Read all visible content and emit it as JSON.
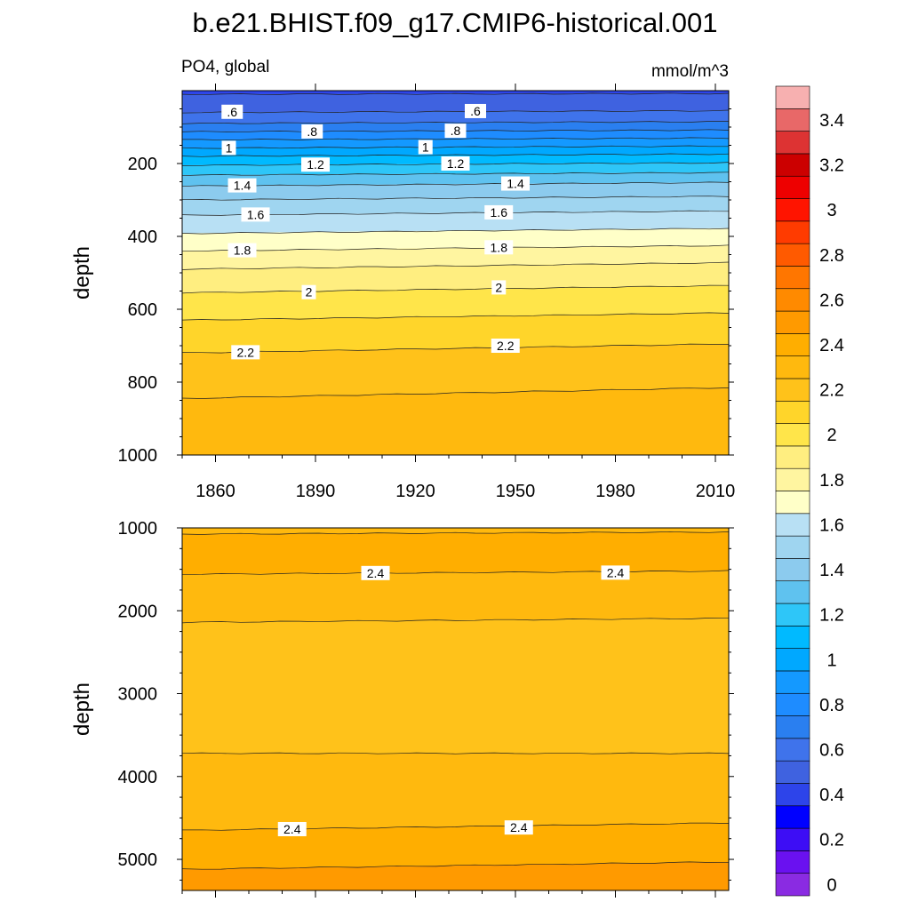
{
  "title": "b.e21.BHIST.f09_g17.CMIP6-historical.001",
  "panel_left_label": "PO4, global",
  "units_label": "mmol/m^3",
  "colorbar": {
    "levels": [
      0,
      0.1,
      0.2,
      0.3,
      0.4,
      0.5,
      0.6,
      0.7,
      0.8,
      0.9,
      1.0,
      1.1,
      1.2,
      1.3,
      1.4,
      1.5,
      1.6,
      1.7,
      1.8,
      1.9,
      2.0,
      2.1,
      2.2,
      2.3,
      2.4,
      2.5,
      2.6,
      2.7,
      2.8,
      2.9,
      3.0,
      3.1,
      3.2,
      3.3,
      3.4,
      3.5
    ],
    "tick_labels": [
      "0",
      "0.2",
      "0.4",
      "0.6",
      "0.8",
      "1",
      "1.2",
      "1.4",
      "1.6",
      "1.8",
      "2",
      "2.2",
      "2.4",
      "2.6",
      "2.8",
      "3",
      "3.2",
      "3.4"
    ],
    "colors": [
      "#8a2be2",
      "#6a11f0",
      "#3d0df5",
      "#0000ff",
      "#2d44ea",
      "#3f62e0",
      "#3f73eb",
      "#2a7ff0",
      "#1e8cff",
      "#1499ff",
      "#00a8ff",
      "#00baff",
      "#2ec6f8",
      "#5fc2ef",
      "#8ccbee",
      "#9fd5f0",
      "#b8e0f4",
      "#ffffc8",
      "#fff5a0",
      "#ffee80",
      "#ffe54a",
      "#ffd52a",
      "#ffc21a",
      "#ffb90e",
      "#ffae00",
      "#ff9a00",
      "#ff8a00",
      "#ff7600",
      "#ff5a00",
      "#ff3b00",
      "#ff1400",
      "#ee0000",
      "#cc0000",
      "#dd3333",
      "#e86868",
      "#f7b0b0"
    ]
  },
  "chart_data": [
    {
      "type": "heatmap",
      "subtype": "filled contour (depth vs time)",
      "panel": "upper",
      "x": [
        1850,
        2014
      ],
      "xticks": [
        1860,
        1890,
        1920,
        1950,
        1980,
        2010
      ],
      "xtick_labels": [
        "1860",
        "1890",
        "1920",
        "1950",
        "1980",
        "2010"
      ],
      "ylabel": "depth",
      "ylim": [
        0,
        1000
      ],
      "y_reversed": true,
      "yticks": [
        200,
        400,
        600,
        800,
        1000
      ],
      "ytick_labels": [
        "200",
        "400",
        "600",
        "800",
        "1000"
      ],
      "contour_levels": [
        0.5,
        0.6,
        0.7,
        0.8,
        0.9,
        1.0,
        1.1,
        1.2,
        1.3,
        1.4,
        1.5,
        1.6,
        1.7,
        1.8,
        1.9,
        2.0,
        2.1,
        2.2,
        2.3
      ],
      "contours": [
        {
          "level": 0.5,
          "depth_start": 10,
          "depth_end": 8
        },
        {
          "level": 0.6,
          "depth_start": 60,
          "depth_end": 55
        },
        {
          "level": 0.7,
          "depth_start": 90,
          "depth_end": 85
        },
        {
          "level": 0.8,
          "depth_start": 113,
          "depth_end": 108
        },
        {
          "level": 0.9,
          "depth_start": 135,
          "depth_end": 130
        },
        {
          "level": 1.0,
          "depth_start": 158,
          "depth_end": 152
        },
        {
          "level": 1.1,
          "depth_start": 180,
          "depth_end": 174
        },
        {
          "level": 1.2,
          "depth_start": 205,
          "depth_end": 198
        },
        {
          "level": 1.3,
          "depth_start": 232,
          "depth_end": 225
        },
        {
          "level": 1.4,
          "depth_start": 262,
          "depth_end": 252
        },
        {
          "level": 1.5,
          "depth_start": 300,
          "depth_end": 290
        },
        {
          "level": 1.6,
          "depth_start": 342,
          "depth_end": 330
        },
        {
          "level": 1.7,
          "depth_start": 392,
          "depth_end": 378
        },
        {
          "level": 1.8,
          "depth_start": 440,
          "depth_end": 425
        },
        {
          "level": 1.9,
          "depth_start": 490,
          "depth_end": 472
        },
        {
          "level": 2.0,
          "depth_start": 555,
          "depth_end": 535
        },
        {
          "level": 2.1,
          "depth_start": 630,
          "depth_end": 610
        },
        {
          "level": 2.2,
          "depth_start": 720,
          "depth_end": 695
        },
        {
          "level": 2.3,
          "depth_start": 845,
          "depth_end": 815
        }
      ],
      "contour_labels": [
        {
          "text": ".6",
          "year": 1865,
          "depth": 58
        },
        {
          "text": ".6",
          "year": 1938,
          "depth": 56
        },
        {
          "text": ".8",
          "year": 1889,
          "depth": 112
        },
        {
          "text": ".8",
          "year": 1932,
          "depth": 110
        },
        {
          "text": "1",
          "year": 1864,
          "depth": 157
        },
        {
          "text": "1",
          "year": 1923,
          "depth": 155
        },
        {
          "text": "1.2",
          "year": 1890,
          "depth": 203
        },
        {
          "text": "1.2",
          "year": 1932,
          "depth": 200
        },
        {
          "text": "1.4",
          "year": 1868,
          "depth": 260
        },
        {
          "text": "1.4",
          "year": 1950,
          "depth": 255
        },
        {
          "text": "1.6",
          "year": 1872,
          "depth": 340
        },
        {
          "text": "1.6",
          "year": 1945,
          "depth": 334
        },
        {
          "text": "1.8",
          "year": 1868,
          "depth": 438
        },
        {
          "text": "1.8",
          "year": 1945,
          "depth": 430
        },
        {
          "text": "2",
          "year": 1888,
          "depth": 553
        },
        {
          "text": "2",
          "year": 1945,
          "depth": 540
        },
        {
          "text": "2.2",
          "year": 1869,
          "depth": 718
        },
        {
          "text": "2.2",
          "year": 1947,
          "depth": 700
        }
      ]
    },
    {
      "type": "heatmap",
      "subtype": "filled contour (depth vs time)",
      "panel": "lower",
      "x": [
        1850,
        2014
      ],
      "ylabel": "depth",
      "ylim": [
        1000,
        5375
      ],
      "y_reversed": true,
      "yticks": [
        1000,
        2000,
        3000,
        4000,
        5000
      ],
      "ytick_labels": [
        "1000",
        "2000",
        "3000",
        "4000",
        "5000"
      ],
      "contour_levels": [
        2.3,
        2.4,
        2.5
      ],
      "contours": [
        {
          "level": 2.3,
          "depth_start": 1075,
          "depth_end": 1050
        },
        {
          "level": 2.4,
          "depth_start": 1560,
          "depth_end": 1520
        },
        {
          "level": 2.3,
          "depth_start": 2140,
          "depth_end": 2090
        },
        {
          "level": 2.3,
          "depth_start": 3720,
          "depth_end": 3720
        },
        {
          "level": 2.4,
          "depth_start": 4650,
          "depth_end": 4560
        },
        {
          "level": 2.5,
          "depth_start": 5120,
          "depth_end": 5030
        }
      ],
      "contour_labels": [
        {
          "text": "2.4",
          "year": 1908,
          "depth": 1545
        },
        {
          "text": "2.4",
          "year": 1980,
          "depth": 1540
        },
        {
          "text": "2.4",
          "year": 1883,
          "depth": 4635
        },
        {
          "text": "2.4",
          "year": 1951,
          "depth": 4615
        }
      ]
    }
  ]
}
